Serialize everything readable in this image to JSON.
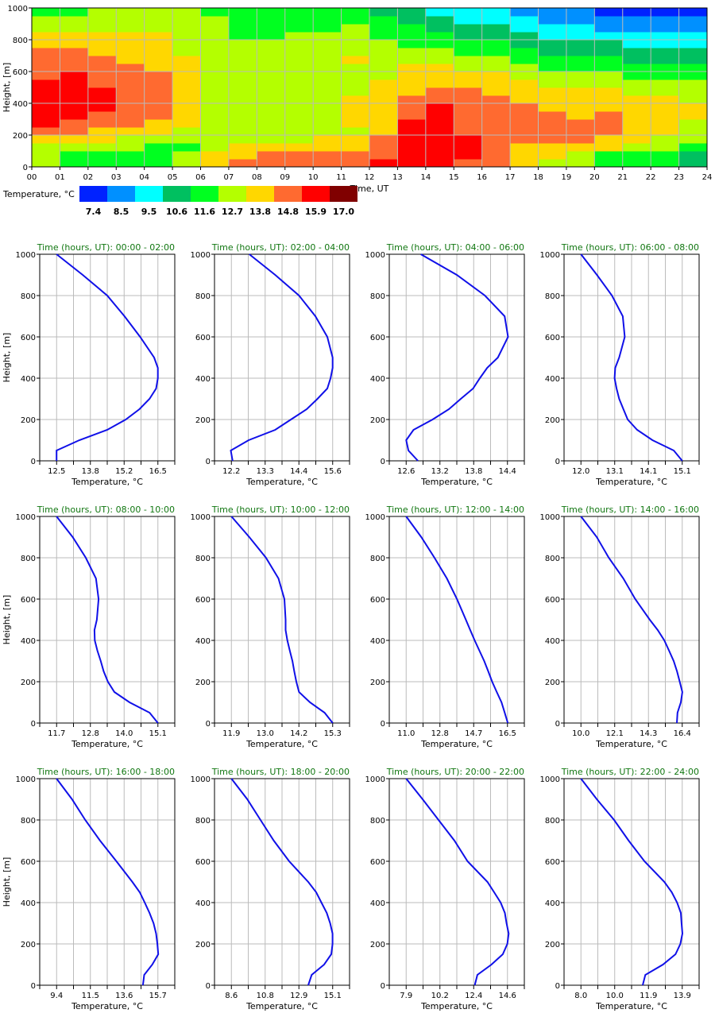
{
  "chart_data": [
    {
      "type": "heatmap",
      "xlabel": "Time, UT",
      "ylabel": "Height, [m]",
      "x_ticks": [
        "00",
        "01",
        "02",
        "03",
        "04",
        "05",
        "06",
        "07",
        "08",
        "09",
        "10",
        "11",
        "12",
        "13",
        "14",
        "15",
        "16",
        "17",
        "18",
        "19",
        "20",
        "21",
        "22",
        "23",
        "24"
      ],
      "y_ticks": [
        "0",
        "200",
        "400",
        "600",
        "800",
        "1000"
      ],
      "xlim": [
        0,
        24
      ],
      "ylim": [
        0,
        1000
      ],
      "grid": true,
      "height_bin_m": 50,
      "time_bin_h": 1,
      "legend": {
        "title": "Temperature, °C",
        "labels": [
          "7.4",
          "8.5",
          "9.5",
          "10.6",
          "11.6",
          "12.7",
          "13.8",
          "14.8",
          "15.9",
          "17.0"
        ],
        "colors": [
          "#0022ff",
          "#0090ff",
          "#00ffff",
          "#00c060",
          "#00ff20",
          "#b4ff00",
          "#ffd700",
          "#ff6a30",
          "#ff0000",
          "#800000"
        ]
      },
      "class_grid_by_hour_bottom_up": [
        [
          5,
          5,
          5,
          6,
          7,
          8,
          8,
          8,
          8,
          8,
          8,
          7,
          7,
          7,
          7,
          6,
          6,
          5,
          5,
          4
        ],
        [
          4,
          4,
          5,
          6,
          7,
          7,
          8,
          8,
          8,
          8,
          8,
          8,
          7,
          7,
          7,
          6,
          6,
          5,
          5,
          4
        ],
        [
          4,
          4,
          5,
          6,
          6,
          7,
          7,
          8,
          8,
          8,
          7,
          7,
          7,
          7,
          6,
          6,
          6,
          5,
          5,
          5
        ],
        [
          4,
          4,
          5,
          5,
          6,
          7,
          7,
          7,
          7,
          7,
          7,
          7,
          7,
          6,
          6,
          6,
          6,
          5,
          5,
          5
        ],
        [
          4,
          4,
          4,
          5,
          6,
          6,
          7,
          7,
          7,
          7,
          7,
          7,
          6,
          6,
          6,
          6,
          6,
          5,
          5,
          5
        ],
        [
          5,
          5,
          4,
          5,
          5,
          6,
          6,
          6,
          6,
          6,
          6,
          6,
          6,
          6,
          5,
          5,
          5,
          5,
          5,
          5
        ],
        [
          6,
          6,
          5,
          5,
          5,
          5,
          5,
          5,
          5,
          5,
          5,
          5,
          5,
          5,
          5,
          5,
          5,
          5,
          5,
          4
        ],
        [
          7,
          6,
          6,
          5,
          5,
          5,
          5,
          5,
          5,
          5,
          5,
          5,
          5,
          5,
          5,
          5,
          4,
          4,
          4,
          4
        ],
        [
          7,
          7,
          6,
          5,
          5,
          5,
          5,
          5,
          5,
          5,
          5,
          5,
          5,
          5,
          5,
          5,
          4,
          4,
          4,
          4
        ],
        [
          7,
          7,
          6,
          5,
          5,
          5,
          5,
          5,
          5,
          5,
          5,
          5,
          5,
          5,
          5,
          5,
          5,
          4,
          4,
          4
        ],
        [
          7,
          7,
          6,
          6,
          5,
          5,
          5,
          5,
          5,
          5,
          5,
          5,
          5,
          5,
          5,
          5,
          5,
          4,
          4,
          4
        ],
        [
          7,
          7,
          6,
          6,
          5,
          6,
          6,
          6,
          6,
          5,
          5,
          5,
          5,
          6,
          5,
          5,
          5,
          5,
          4,
          4
        ],
        [
          8,
          7,
          7,
          7,
          6,
          6,
          6,
          6,
          6,
          6,
          6,
          5,
          5,
          5,
          5,
          5,
          4,
          4,
          4,
          3
        ],
        [
          8,
          8,
          8,
          8,
          8,
          8,
          7,
          7,
          7,
          6,
          6,
          6,
          6,
          5,
          5,
          4,
          4,
          4,
          3,
          3
        ],
        [
          8,
          8,
          8,
          8,
          8,
          8,
          8,
          8,
          7,
          7,
          6,
          6,
          6,
          5,
          5,
          4,
          4,
          3,
          3,
          2
        ],
        [
          7,
          8,
          8,
          8,
          7,
          7,
          7,
          7,
          7,
          7,
          6,
          6,
          5,
          5,
          4,
          4,
          3,
          3,
          2,
          2
        ],
        [
          7,
          7,
          7,
          7,
          7,
          7,
          7,
          7,
          7,
          6,
          6,
          6,
          5,
          5,
          4,
          4,
          3,
          3,
          2,
          2
        ],
        [
          6,
          6,
          6,
          7,
          7,
          7,
          7,
          7,
          6,
          6,
          6,
          5,
          5,
          4,
          4,
          3,
          3,
          2,
          2,
          1
        ],
        [
          5,
          6,
          6,
          7,
          7,
          7,
          7,
          6,
          6,
          6,
          5,
          5,
          4,
          4,
          3,
          3,
          2,
          2,
          1,
          1
        ],
        [
          5,
          5,
          6,
          7,
          7,
          7,
          6,
          6,
          6,
          6,
          5,
          5,
          4,
          4,
          3,
          3,
          2,
          2,
          1,
          1
        ],
        [
          4,
          4,
          6,
          6,
          7,
          7,
          7,
          6,
          6,
          6,
          5,
          5,
          4,
          4,
          3,
          3,
          2,
          1,
          1,
          0
        ],
        [
          4,
          4,
          5,
          6,
          6,
          6,
          6,
          6,
          6,
          5,
          5,
          4,
          4,
          3,
          3,
          2,
          2,
          1,
          1,
          0
        ],
        [
          4,
          4,
          5,
          5,
          6,
          6,
          6,
          6,
          6,
          5,
          5,
          4,
          4,
          3,
          3,
          2,
          2,
          1,
          1,
          0
        ],
        [
          3,
          3,
          4,
          5,
          5,
          5,
          6,
          6,
          5,
          5,
          5,
          4,
          4,
          3,
          3,
          2,
          2,
          1,
          1,
          0
        ]
      ]
    },
    {
      "type": "line",
      "panel_title_prefix": "Time (hours, UT): ",
      "xlabel": "Temperature, °C",
      "ylabel": "Height, [m]",
      "y_ticks": [
        "0",
        "200",
        "400",
        "600",
        "800",
        "1000"
      ],
      "ylim": [
        0,
        1000
      ],
      "grid": true,
      "line_color": "#1010e8",
      "title_color": "#117711",
      "heights": [
        0,
        50,
        100,
        150,
        200,
        250,
        300,
        350,
        400,
        450,
        500,
        600,
        700,
        800,
        900,
        1000
      ],
      "panels": [
        {
          "time": "00:00 - 02:00",
          "x_ticks": [
            "12.5",
            "13.8",
            "15.2",
            "16.5"
          ],
          "temps": [
            12.5,
            12.5,
            13.4,
            14.5,
            15.23,
            15.77,
            16.17,
            16.43,
            16.5,
            16.5,
            16.35,
            15.8,
            15.18,
            14.5,
            13.53,
            12.5
          ]
        },
        {
          "time": "02:00 - 04:00",
          "x_ticks": [
            "12.2",
            "13.3",
            "14.4",
            "15.6"
          ],
          "temps": [
            12.24,
            12.18,
            12.78,
            13.67,
            14.2,
            14.73,
            15.09,
            15.42,
            15.53,
            15.6,
            15.6,
            15.42,
            15.02,
            14.47,
            13.67,
            12.8
          ]
        },
        {
          "time": "04:00 - 06:00",
          "x_ticks": [
            "12.6",
            "13.2",
            "13.8",
            "14.4"
          ],
          "temps": [
            12.81,
            12.64,
            12.6,
            12.73,
            13.07,
            13.36,
            13.57,
            13.79,
            13.91,
            14.04,
            14.23,
            14.41,
            14.35,
            14.0,
            13.5,
            12.86
          ]
        },
        {
          "time": "06:00 - 08:00",
          "x_ticks": [
            "12.0",
            "13.1",
            "14.1",
            "15.1"
          ],
          "temps": [
            15.1,
            14.84,
            14.19,
            13.72,
            13.43,
            13.3,
            13.17,
            13.09,
            13.03,
            13.05,
            13.17,
            13.34,
            13.28,
            12.95,
            12.49,
            12.0
          ]
        },
        {
          "time": "08:00 - 10:00",
          "x_ticks": [
            "11.7",
            "12.8",
            "14.0",
            "15.1"
          ],
          "temps": [
            15.1,
            14.82,
            14.15,
            13.64,
            13.42,
            13.28,
            13.18,
            13.07,
            12.98,
            12.97,
            13.05,
            13.11,
            13.02,
            12.68,
            12.24,
            11.7
          ]
        },
        {
          "time": "10:00 - 12:00",
          "x_ticks": [
            "11.9",
            "13.0",
            "14.2",
            "15.3"
          ],
          "temps": [
            15.3,
            15.03,
            14.54,
            14.17,
            14.08,
            14.01,
            13.95,
            13.86,
            13.78,
            13.72,
            13.72,
            13.68,
            13.48,
            13.06,
            12.5,
            11.9
          ]
        },
        {
          "time": "12:00 - 14:00",
          "x_ticks": [
            "11.0",
            "12.8",
            "14.7",
            "16.5"
          ],
          "temps": [
            16.52,
            16.35,
            16.18,
            15.92,
            15.67,
            15.46,
            15.24,
            14.98,
            14.72,
            14.48,
            14.24,
            13.76,
            13.21,
            12.54,
            11.82,
            11.0
          ]
        },
        {
          "time": "14:00 - 16:00",
          "x_ticks": [
            "10.0",
            "12.1",
            "14.3",
            "16.4"
          ],
          "temps": [
            16.06,
            16.1,
            16.31,
            16.41,
            16.24,
            16.07,
            15.86,
            15.57,
            15.27,
            14.85,
            14.35,
            13.43,
            12.68,
            11.76,
            11.0,
            10.0
          ]
        },
        {
          "time": "16:00 - 18:00",
          "x_ticks": [
            "9.4",
            "11.5",
            "13.6",
            "15.7"
          ],
          "temps": [
            14.77,
            14.85,
            15.35,
            15.72,
            15.67,
            15.59,
            15.43,
            15.18,
            14.88,
            14.57,
            14.11,
            13.12,
            12.1,
            11.18,
            10.36,
            9.4
          ]
        },
        {
          "time": "18:00 - 20:00",
          "x_ticks": [
            "8.6",
            "10.8",
            "12.9",
            "15.1"
          ],
          "temps": [
            13.53,
            13.75,
            14.55,
            15.01,
            15.09,
            15.09,
            14.94,
            14.72,
            14.38,
            14.04,
            13.53,
            12.31,
            11.32,
            10.47,
            9.62,
            8.6
          ]
        },
        {
          "time": "20:00 - 22:00",
          "x_ticks": [
            "7.9",
            "10.2",
            "12.4",
            "14.6"
          ],
          "temps": [
            12.44,
            12.61,
            13.54,
            14.29,
            14.59,
            14.68,
            14.54,
            14.43,
            14.15,
            13.72,
            13.28,
            11.96,
            11.09,
            10.04,
            8.99,
            7.9
          ]
        },
        {
          "time": "22:00 - 24:00",
          "x_ticks": [
            "8.0",
            "10.0",
            "11.9",
            "13.9"
          ],
          "temps": [
            11.6,
            11.75,
            12.78,
            13.51,
            13.79,
            13.91,
            13.86,
            13.82,
            13.6,
            13.29,
            12.86,
            11.7,
            10.78,
            9.93,
            8.93,
            8.0
          ]
        }
      ]
    }
  ]
}
